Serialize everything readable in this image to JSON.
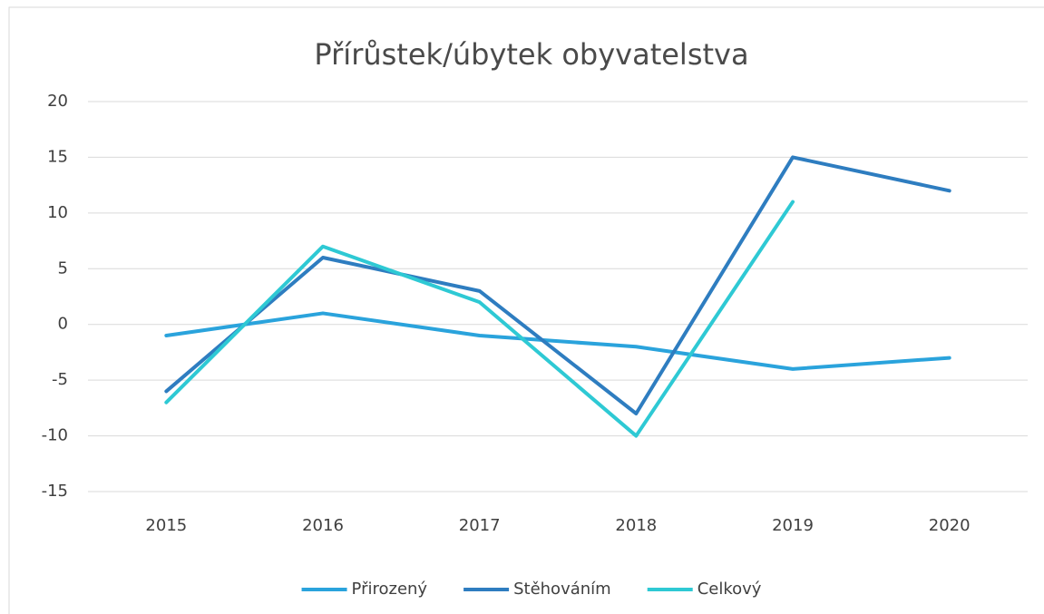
{
  "chart_data": {
    "type": "line",
    "title": "Přírůstek/úbytek obyvatelstva",
    "categories": [
      "2015",
      "2016",
      "2017",
      "2018",
      "2019",
      "2020"
    ],
    "series": [
      {
        "name": "Přirozený",
        "color": "#2aa3dc",
        "values": [
          -1,
          1,
          -1,
          -2,
          -4,
          -3
        ]
      },
      {
        "name": "Stěhováním",
        "color": "#2e7dc0",
        "values": [
          -6,
          6,
          3,
          -8,
          15,
          12
        ]
      },
      {
        "name": "Celkový",
        "color": "#2ec9d4",
        "values": [
          -7,
          7,
          2,
          -10,
          11,
          null
        ]
      }
    ],
    "ylim": [
      -15,
      20
    ],
    "yticks": [
      -15,
      -10,
      -5,
      0,
      5,
      10,
      15,
      20
    ],
    "grid": true,
    "legend": "bottom"
  }
}
